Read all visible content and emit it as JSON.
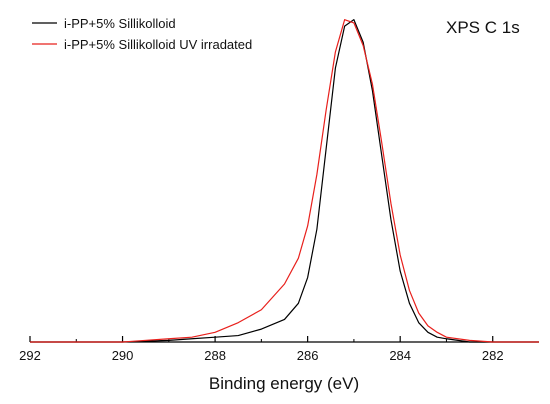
{
  "chart_data": {
    "type": "line",
    "title": "",
    "annotation": "XPS C 1s",
    "xlabel": "Binding energy (eV)",
    "ylabel": "",
    "xlim": [
      292,
      281
    ],
    "ylim": [
      0,
      1.03
    ],
    "x_reversed": true,
    "x_ticks": [
      292,
      290,
      288,
      286,
      284,
      282
    ],
    "x_tick_labels": [
      "292",
      "290",
      "288",
      "286",
      "284",
      "282"
    ],
    "grid": false,
    "legend_position": "top-left",
    "series": [
      {
        "name": "i-PP+5% Sillikolloid",
        "color": "#000000",
        "x": [
          292.0,
          291.0,
          290.0,
          289.0,
          288.5,
          288.0,
          287.5,
          287.0,
          286.5,
          286.2,
          286.0,
          285.8,
          285.6,
          285.4,
          285.2,
          285.0,
          284.8,
          284.6,
          284.4,
          284.2,
          284.0,
          283.8,
          283.6,
          283.4,
          283.2,
          283.0,
          282.5,
          282.0,
          281.0
        ],
        "y": [
          0.0,
          0.0,
          0.0,
          0.005,
          0.01,
          0.015,
          0.02,
          0.04,
          0.07,
          0.12,
          0.2,
          0.35,
          0.6,
          0.85,
          0.98,
          1.0,
          0.93,
          0.78,
          0.58,
          0.38,
          0.22,
          0.12,
          0.06,
          0.03,
          0.015,
          0.01,
          0.0,
          0.0,
          0.0
        ]
      },
      {
        "name": "i-PP+5% Sillikolloid UV irradated",
        "color": "#e8201c",
        "x": [
          292.0,
          291.0,
          290.0,
          289.0,
          288.5,
          288.0,
          287.5,
          287.0,
          286.5,
          286.2,
          286.0,
          285.8,
          285.6,
          285.4,
          285.2,
          285.0,
          284.8,
          284.6,
          284.4,
          284.2,
          284.0,
          283.8,
          283.6,
          283.4,
          283.2,
          283.0,
          282.5,
          282.0,
          281.0
        ],
        "y": [
          0.0,
          0.0,
          0.0,
          0.01,
          0.015,
          0.03,
          0.06,
          0.1,
          0.18,
          0.26,
          0.36,
          0.52,
          0.72,
          0.9,
          1.0,
          0.99,
          0.92,
          0.8,
          0.62,
          0.43,
          0.27,
          0.16,
          0.09,
          0.05,
          0.03,
          0.015,
          0.005,
          0.0,
          0.0
        ]
      }
    ]
  }
}
